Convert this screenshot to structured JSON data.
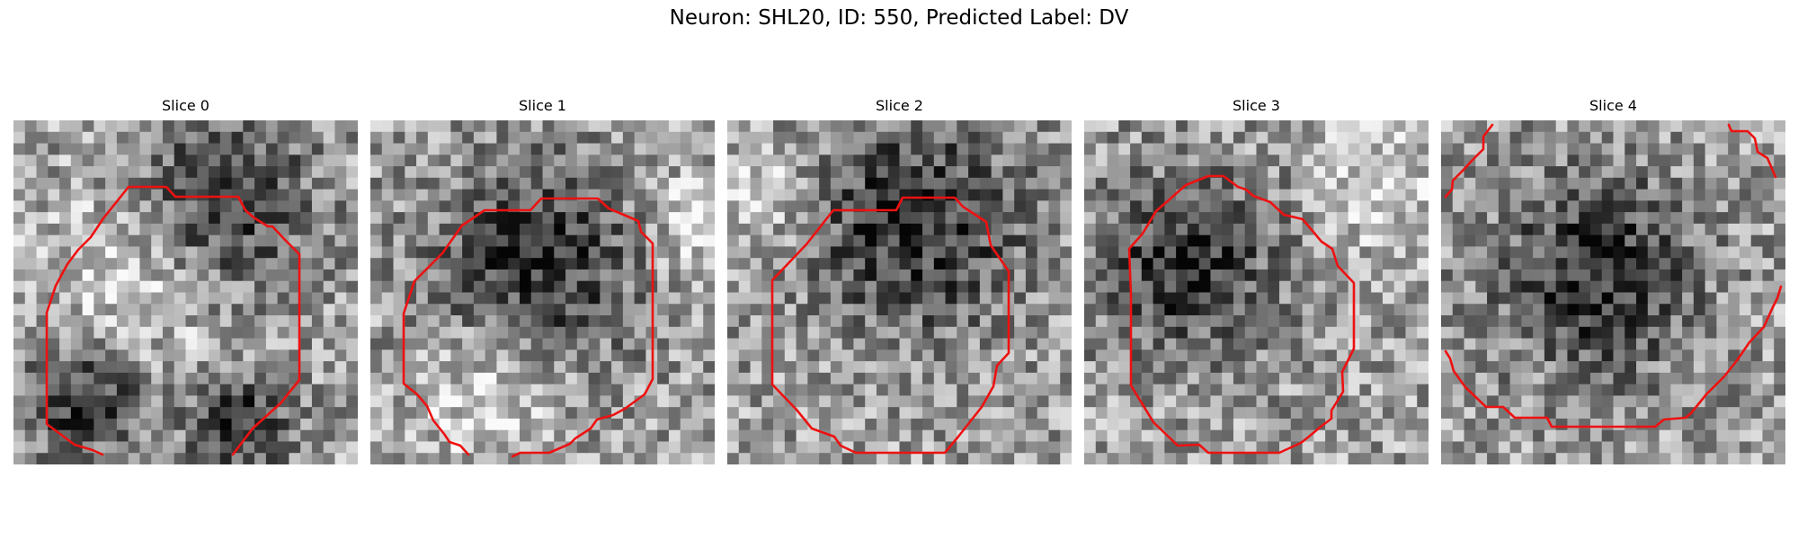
{
  "figure": {
    "title": "Neuron: SHL20, ID: 550, Predicted Label: DV",
    "contour_color": "#ee1111",
    "colormap": "gray",
    "grid_size": 30,
    "panels": [
      {
        "title": "Slice 0",
        "dark_spots": [
          [
            0.6,
            0.25,
            0.18
          ],
          [
            0.2,
            0.8,
            0.12
          ],
          [
            0.65,
            0.88,
            0.1
          ]
        ],
        "bright_spots": [
          [
            0.35,
            0.45,
            0.2
          ]
        ]
      },
      {
        "title": "Slice 1",
        "dark_spots": [
          [
            0.48,
            0.42,
            0.2
          ]
        ],
        "bright_spots": [
          [
            0.95,
            0.3,
            0.1
          ],
          [
            0.35,
            0.8,
            0.15
          ]
        ]
      },
      {
        "title": "Slice 2",
        "dark_spots": [
          [
            0.55,
            0.3,
            0.22
          ]
        ],
        "bright_spots": [
          [
            0.1,
            0.2,
            0.1
          ]
        ]
      },
      {
        "title": "Slice 3",
        "dark_spots": [
          [
            0.3,
            0.42,
            0.18
          ]
        ],
        "bright_spots": [
          [
            0.85,
            0.2,
            0.12
          ]
        ]
      },
      {
        "title": "Slice 4",
        "dark_spots": [
          [
            0.45,
            0.45,
            0.2
          ]
        ],
        "bright_spots": []
      }
    ]
  }
}
